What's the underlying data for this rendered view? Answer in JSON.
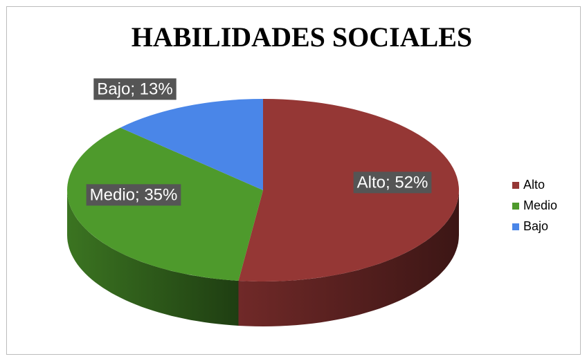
{
  "chart_data": {
    "type": "pie3d",
    "title": "HABILIDADES SOCIALES",
    "categories": [
      "Alto",
      "Medio",
      "Bajo"
    ],
    "values": [
      52,
      35,
      13
    ],
    "value_labels": [
      "Alto; 52%",
      "Medio; 35%",
      "Bajo; 13%"
    ],
    "colors": [
      "#953735",
      "#4e9a2c",
      "#4a86e8"
    ],
    "legend": "right"
  }
}
